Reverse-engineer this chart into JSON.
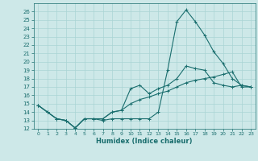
{
  "xlabel": "Humidex (Indice chaleur)",
  "background_color": "#cde8e8",
  "grid_color": "#aad4d4",
  "line_color": "#1a6e6e",
  "x": [
    0,
    1,
    2,
    3,
    4,
    5,
    6,
    7,
    8,
    9,
    10,
    11,
    12,
    13,
    14,
    15,
    16,
    17,
    18,
    19,
    20,
    21,
    22,
    23
  ],
  "line1": [
    14.8,
    14.0,
    13.2,
    13.0,
    12.1,
    13.2,
    13.2,
    13.0,
    13.2,
    13.2,
    13.2,
    13.2,
    13.2,
    14.0,
    19.0,
    24.8,
    26.2,
    24.8,
    23.2,
    21.2,
    19.8,
    18.0,
    17.2,
    17.0
  ],
  "line2": [
    14.8,
    14.0,
    13.2,
    13.0,
    12.1,
    13.2,
    13.2,
    13.2,
    14.0,
    14.2,
    16.8,
    17.2,
    16.2,
    16.8,
    17.2,
    18.0,
    19.5,
    19.2,
    19.0,
    17.5,
    17.2,
    17.0,
    17.2,
    17.0
  ],
  "line3": [
    14.8,
    14.0,
    13.2,
    13.0,
    12.1,
    13.2,
    13.2,
    13.2,
    14.0,
    14.2,
    15.0,
    15.5,
    15.8,
    16.2,
    16.5,
    17.0,
    17.5,
    17.8,
    18.0,
    18.2,
    18.5,
    18.8,
    17.0,
    17.0
  ],
  "ylim": [
    12,
    27
  ],
  "xlim": [
    -0.5,
    23.5
  ],
  "yticks": [
    12,
    13,
    14,
    15,
    16,
    17,
    18,
    19,
    20,
    21,
    22,
    23,
    24,
    25,
    26
  ],
  "xticks": [
    0,
    1,
    2,
    3,
    4,
    5,
    6,
    7,
    8,
    9,
    10,
    11,
    12,
    13,
    14,
    15,
    16,
    17,
    18,
    19,
    20,
    21,
    22,
    23
  ]
}
